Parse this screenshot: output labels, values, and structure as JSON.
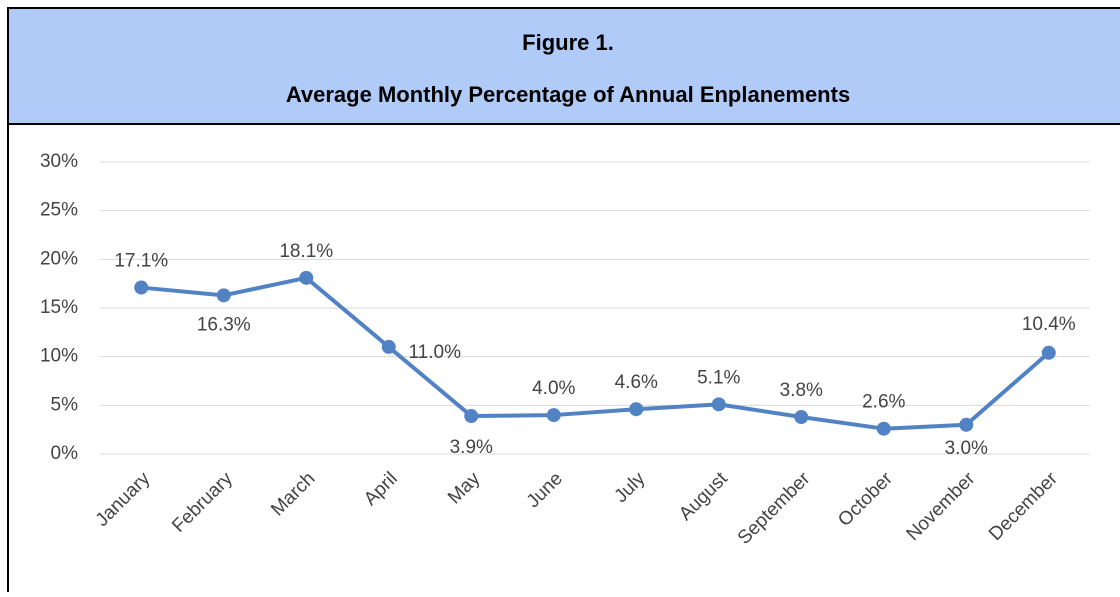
{
  "chart_data": {
    "type": "line",
    "title": "Figure 1.",
    "subtitle": "Average Monthly Percentage of Annual Enplanements",
    "categories": [
      "January",
      "February",
      "March",
      "April",
      "May",
      "June",
      "July",
      "August",
      "September",
      "October",
      "November",
      "December"
    ],
    "values": [
      17.1,
      16.3,
      18.1,
      11.0,
      3.9,
      4.0,
      4.6,
      5.1,
      3.8,
      2.6,
      3.0,
      10.4
    ],
    "value_labels": [
      "17.1%",
      "16.3%",
      "18.1%",
      "11.0%",
      "3.9%",
      "4.0%",
      "4.6%",
      "5.1%",
      "3.8%",
      "2.6%",
      "3.0%",
      "10.4%"
    ],
    "color": "#5183c4",
    "ylim": [
      0,
      30
    ],
    "yticks": [
      {
        "value": 0,
        "label": "0%"
      },
      {
        "value": 5,
        "label": "5%"
      },
      {
        "value": 10,
        "label": "10%"
      },
      {
        "value": 15,
        "label": "15%"
      },
      {
        "value": 20,
        "label": "20%"
      },
      {
        "value": 25,
        "label": "25%"
      },
      {
        "value": 30,
        "label": "30%"
      }
    ],
    "grid": true
  }
}
